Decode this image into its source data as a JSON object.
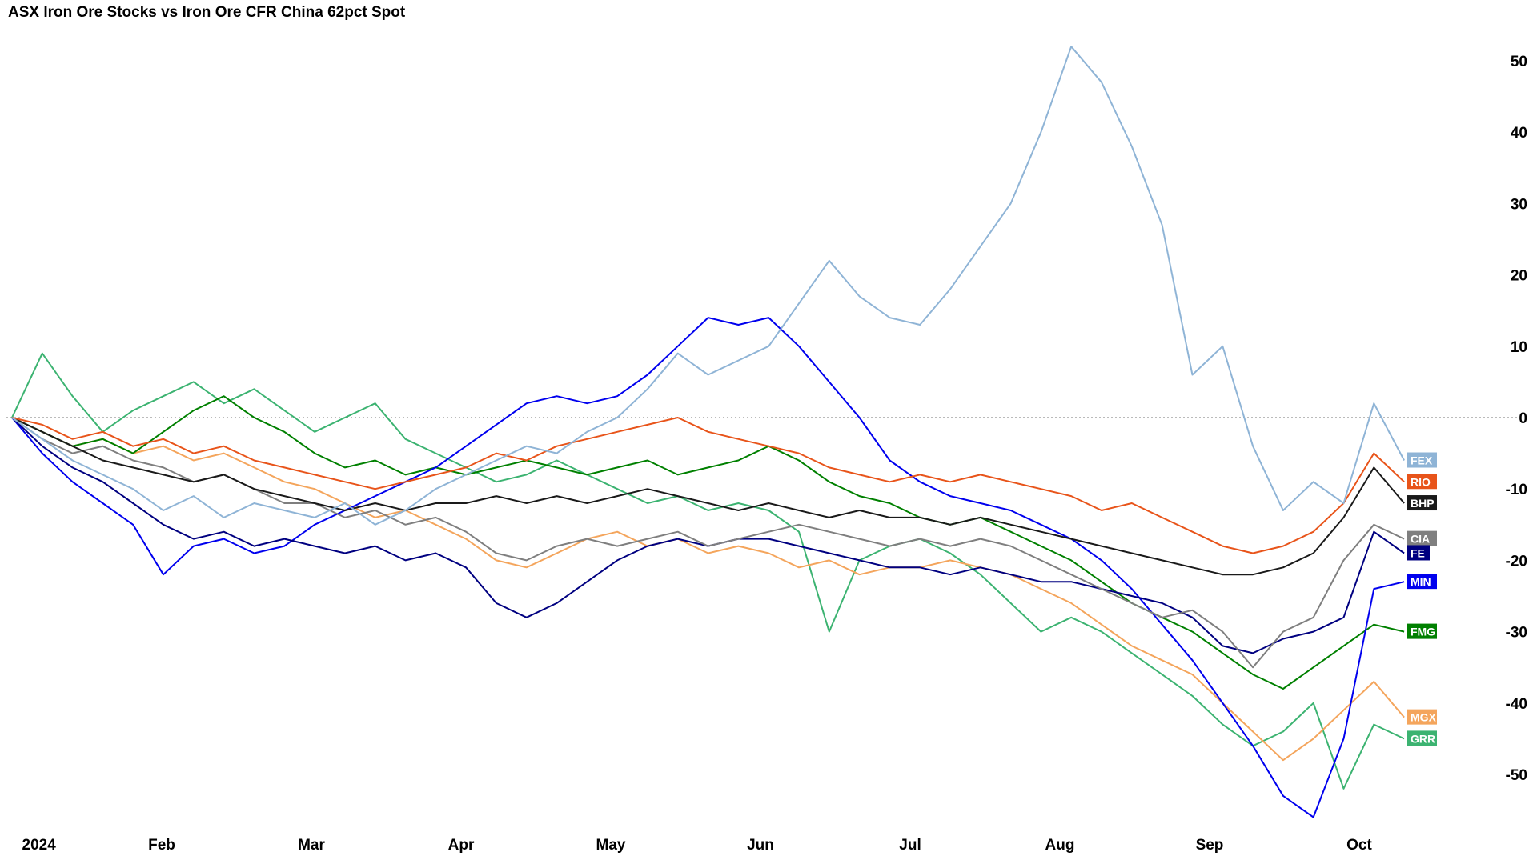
{
  "chart": {
    "title": "ASX Iron Ore Stocks vs Iron Ore CFR China 62pct Spot"
  },
  "chart_data": {
    "type": "line",
    "title": "ASX Iron Ore Stocks vs Iron Ore CFR China 62pct Spot",
    "x_axis": {
      "tick_labels": [
        "2024",
        "Feb",
        "Mar",
        "Apr",
        "May",
        "Jun",
        "Jul",
        "Aug",
        "Sep",
        "Oct"
      ],
      "unit": "month",
      "x_start_month": 0,
      "x_end_month": 9.3
    },
    "y_axis": {
      "tick_values": [
        50,
        40,
        30,
        20,
        10,
        0,
        -10,
        -20,
        -30,
        -40,
        -50
      ],
      "ylim": [
        -58,
        58
      ],
      "side": "right",
      "unit": "percent change"
    },
    "zero_line": true,
    "grid": false,
    "legend_position": "right-end-of-lines",
    "series": [
      {
        "name": "FEX",
        "color": "#8fb4d6",
        "values": [
          0,
          -3,
          -6,
          -8,
          -10,
          -13,
          -11,
          -14,
          -12,
          -13,
          -14,
          -12,
          -15,
          -13,
          -10,
          -8,
          -6,
          -4,
          -5,
          -2,
          0,
          4,
          9,
          6,
          8,
          10,
          16,
          22,
          17,
          14,
          13,
          18,
          24,
          30,
          40,
          52,
          47,
          38,
          27,
          6,
          10,
          -4,
          -13,
          -9,
          -12,
          2,
          -6
        ]
      },
      {
        "name": "RIO",
        "color": "#e8541a",
        "values": [
          0,
          -1,
          -3,
          -2,
          -4,
          -3,
          -5,
          -4,
          -6,
          -7,
          -8,
          -9,
          -10,
          -9,
          -8,
          -7,
          -5,
          -6,
          -4,
          -3,
          -2,
          -1,
          0,
          -2,
          -3,
          -4,
          -5,
          -7,
          -8,
          -9,
          -8,
          -9,
          -8,
          -9,
          -10,
          -11,
          -13,
          -12,
          -14,
          -16,
          -18,
          -19,
          -18,
          -16,
          -12,
          -5,
          -9
        ]
      },
      {
        "name": "BHP",
        "color": "#1a1a1a",
        "values": [
          0,
          -2,
          -4,
          -6,
          -7,
          -8,
          -9,
          -8,
          -10,
          -11,
          -12,
          -13,
          -12,
          -13,
          -12,
          -12,
          -11,
          -12,
          -11,
          -12,
          -11,
          -10,
          -11,
          -12,
          -13,
          -12,
          -13,
          -14,
          -13,
          -14,
          -14,
          -15,
          -14,
          -15,
          -16,
          -17,
          -18,
          -19,
          -20,
          -21,
          -22,
          -22,
          -21,
          -19,
          -14,
          -7,
          -12
        ]
      },
      {
        "name": "CIA",
        "color": "#7f7f7f",
        "values": [
          0,
          -3,
          -5,
          -4,
          -6,
          -7,
          -9,
          -8,
          -10,
          -12,
          -12,
          -14,
          -13,
          -15,
          -14,
          -16,
          -19,
          -20,
          -18,
          -17,
          -18,
          -17,
          -16,
          -18,
          -17,
          -16,
          -15,
          -16,
          -17,
          -18,
          -17,
          -18,
          -17,
          -18,
          -20,
          -22,
          -24,
          -26,
          -28,
          -27,
          -30,
          -35,
          -30,
          -28,
          -20,
          -15,
          -17
        ]
      },
      {
        "name": "FE",
        "color": "#000080",
        "values": [
          0,
          -4,
          -7,
          -9,
          -12,
          -15,
          -17,
          -16,
          -18,
          -17,
          -18,
          -19,
          -18,
          -20,
          -19,
          -21,
          -26,
          -28,
          -26,
          -23,
          -20,
          -18,
          -17,
          -18,
          -17,
          -17,
          -18,
          -19,
          -20,
          -21,
          -21,
          -22,
          -21,
          -22,
          -23,
          -23,
          -24,
          -25,
          -26,
          -28,
          -32,
          -33,
          -31,
          -30,
          -28,
          -16,
          -19
        ]
      },
      {
        "name": "MIN",
        "color": "#0000ee",
        "values": [
          0,
          -5,
          -9,
          -12,
          -15,
          -22,
          -18,
          -17,
          -19,
          -18,
          -15,
          -13,
          -11,
          -9,
          -7,
          -4,
          -1,
          2,
          3,
          2,
          3,
          6,
          10,
          14,
          13,
          14,
          10,
          5,
          0,
          -6,
          -9,
          -11,
          -12,
          -13,
          -15,
          -17,
          -20,
          -24,
          -29,
          -34,
          -40,
          -46,
          -53,
          -56,
          -45,
          -24,
          -23
        ]
      },
      {
        "name": "FMG",
        "color": "#008000",
        "values": [
          0,
          -2,
          -4,
          -3,
          -5,
          -2,
          1,
          3,
          0,
          -2,
          -5,
          -7,
          -6,
          -8,
          -7,
          -8,
          -7,
          -6,
          -7,
          -8,
          -7,
          -6,
          -8,
          -7,
          -6,
          -4,
          -6,
          -9,
          -11,
          -12,
          -14,
          -15,
          -14,
          -16,
          -18,
          -20,
          -23,
          -26,
          -28,
          -30,
          -33,
          -36,
          -38,
          -35,
          -32,
          -29,
          -30
        ]
      },
      {
        "name": "MGX",
        "color": "#f4a55c",
        "values": [
          0,
          -2,
          -4,
          -3,
          -5,
          -4,
          -6,
          -5,
          -7,
          -9,
          -10,
          -12,
          -14,
          -13,
          -15,
          -17,
          -20,
          -21,
          -19,
          -17,
          -16,
          -18,
          -17,
          -19,
          -18,
          -19,
          -21,
          -20,
          -22,
          -21,
          -21,
          -20,
          -21,
          -22,
          -24,
          -26,
          -29,
          -32,
          -34,
          -36,
          -40,
          -44,
          -48,
          -45,
          -41,
          -37,
          -42
        ]
      },
      {
        "name": "GRR",
        "color": "#3cb371",
        "values": [
          0,
          9,
          3,
          -2,
          1,
          3,
          5,
          2,
          4,
          1,
          -2,
          0,
          2,
          -3,
          -5,
          -7,
          -9,
          -8,
          -6,
          -8,
          -10,
          -12,
          -11,
          -13,
          -12,
          -13,
          -16,
          -30,
          -20,
          -18,
          -17,
          -19,
          -22,
          -26,
          -30,
          -28,
          -30,
          -33,
          -36,
          -39,
          -43,
          -46,
          -44,
          -40,
          -52,
          -43,
          -45
        ]
      }
    ]
  }
}
